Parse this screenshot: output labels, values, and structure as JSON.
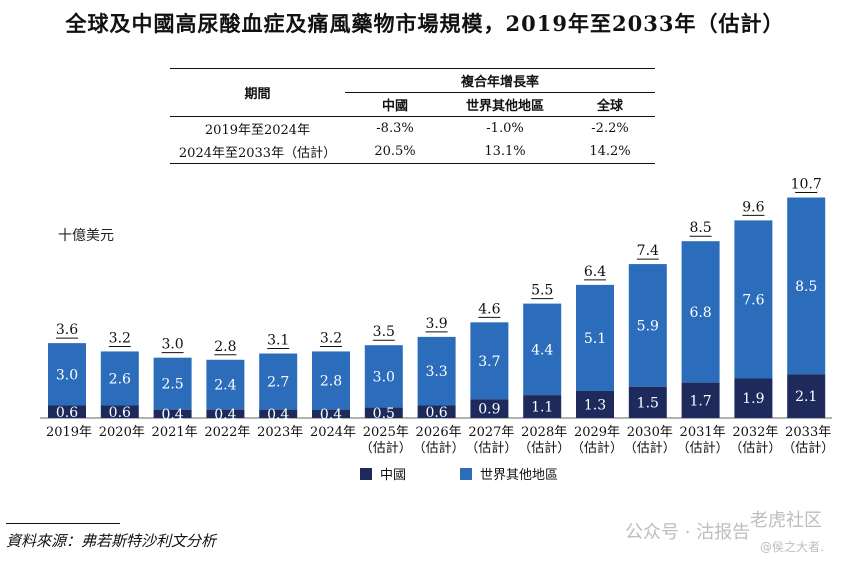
{
  "title": "全球及中國高尿酸血症及痛風藥物市場規模，2019年至2033年（估計）",
  "cagr_table": {
    "period_header": "期間",
    "group_header": "複合年增長率",
    "columns": [
      "中國",
      "世界其他地區",
      "全球"
    ],
    "rows": [
      {
        "period": "2019年至2024年",
        "values": [
          "-8.3%",
          "-1.0%",
          "-2.2%"
        ]
      },
      {
        "period": "2024年至2033年（估計）",
        "values": [
          "20.5%",
          "13.1%",
          "14.2%"
        ]
      }
    ]
  },
  "unit_label": "十億美元",
  "legend": {
    "china": "中國",
    "rest": "世界其他地區"
  },
  "source": "資料來源：弗若斯特沙利文分析",
  "watermark": {
    "left": "公众号 · 沽报告",
    "right": "老虎社区",
    "sub": "@侯之大者."
  },
  "colors": {
    "china": "#1e2a5c",
    "rest": "#2b6cbb",
    "text": "#111111"
  },
  "chart_data": {
    "type": "bar",
    "stacked": true,
    "categories": [
      "2019年",
      "2020年",
      "2021年",
      "2022年",
      "2023年",
      "2024年",
      "2025年\n（估計）",
      "2026年\n（估計）",
      "2027年\n（估計）",
      "2028年\n（估計）",
      "2029年\n（估計）",
      "2030年\n（估計）",
      "2031年\n（估計）",
      "2032年\n（估計）",
      "2033年\n（估計）"
    ],
    "series": [
      {
        "name": "中國",
        "values": [
          0.6,
          0.6,
          0.4,
          0.4,
          0.4,
          0.4,
          0.5,
          0.6,
          0.9,
          1.1,
          1.3,
          1.5,
          1.7,
          1.9,
          2.1
        ]
      },
      {
        "name": "世界其他地區",
        "values": [
          3.0,
          2.6,
          2.5,
          2.4,
          2.7,
          2.8,
          3.0,
          3.3,
          3.7,
          4.4,
          5.1,
          5.9,
          6.8,
          7.6,
          8.5
        ]
      }
    ],
    "totals": [
      3.6,
      3.2,
      3.0,
      2.8,
      3.1,
      3.2,
      3.5,
      3.9,
      4.6,
      5.5,
      6.4,
      7.4,
      8.5,
      9.6,
      10.7
    ],
    "ylabel": "十億美元",
    "legend_position": "bottom-center",
    "grid": false
  }
}
